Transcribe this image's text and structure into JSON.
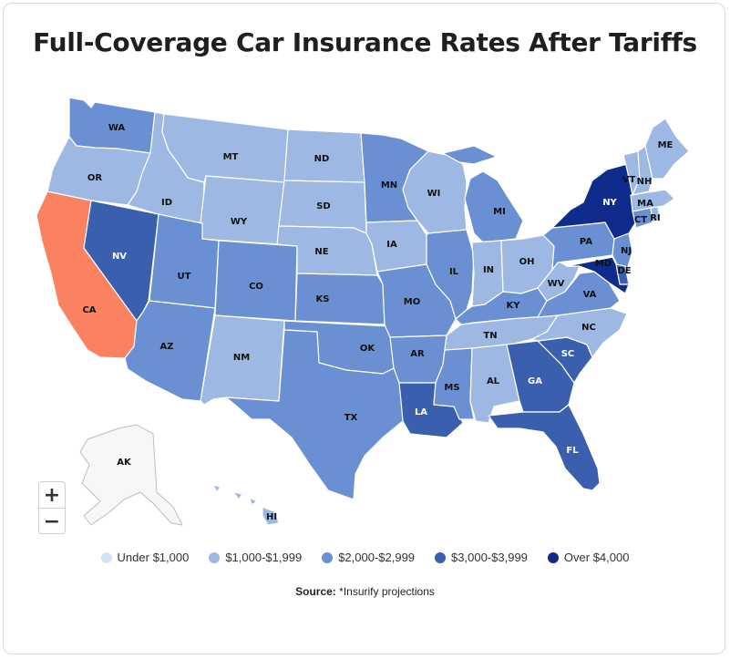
{
  "title": "Full-Coverage Car Insurance Rates After Tariffs",
  "colors": {
    "tier0": "#d4e2f7",
    "tier1": "#9db8e3",
    "tier2": "#6a8fd2",
    "tier3": "#3a5fae",
    "tier4": "#0f2c8c",
    "highlight": "#fa8260",
    "alaska": "#f7f7f7"
  },
  "legend": [
    {
      "label": "Under $1,000",
      "color_key": "tier0"
    },
    {
      "label": "$1,000-$1,999",
      "color_key": "tier1"
    },
    {
      "label": "$2,000-$2,999",
      "color_key": "tier2"
    },
    {
      "label": "$3,000-$3,999",
      "color_key": "tier3"
    },
    {
      "label": "Over $4,000",
      "color_key": "tier4"
    }
  ],
  "source": {
    "prefix": "Source:",
    "text": "*Insurify projections"
  },
  "zoom": {
    "in": "+",
    "out": "−"
  },
  "state_labels": {
    "WA": "WA",
    "OR": "OR",
    "CA": "CA",
    "ID": "ID",
    "NV": "NV",
    "MT": "MT",
    "WY": "WY",
    "UT": "UT",
    "AZ": "AZ",
    "CO": "CO",
    "NM": "NM",
    "ND": "ND",
    "SD": "SD",
    "NE": "NE",
    "KS": "KS",
    "OK": "OK",
    "TX": "TX",
    "MN": "MN",
    "IA": "IA",
    "MO": "MO",
    "AR": "AR",
    "LA": "LA",
    "WI": "WI",
    "IL": "IL",
    "MI": "MI",
    "IN": "IN",
    "OH": "OH",
    "KY": "KY",
    "TN": "TN",
    "MS": "MS",
    "AL": "AL",
    "GA": "GA",
    "FL": "FL",
    "SC": "SC",
    "NC": "NC",
    "VA": "VA",
    "WV": "WV",
    "PA": "PA",
    "NY": "NY",
    "NJ": "NJ",
    "DE": "DE",
    "MD": "MD",
    "CT": "CT",
    "RI": "RI",
    "MA": "MA",
    "VT": "VT",
    "NH": "NH",
    "ME": "ME",
    "AK": "AK",
    "HI": "HI"
  },
  "state_tiers": {
    "WA": "tier2",
    "OR": "tier1",
    "CA": "highlight",
    "ID": "tier1",
    "NV": "tier3",
    "MT": "tier1",
    "WY": "tier1",
    "UT": "tier2",
    "AZ": "tier2",
    "CO": "tier2",
    "NM": "tier1",
    "ND": "tier1",
    "SD": "tier1",
    "NE": "tier1",
    "KS": "tier2",
    "OK": "tier2",
    "TX": "tier2",
    "MN": "tier2",
    "IA": "tier1",
    "MO": "tier2",
    "AR": "tier2",
    "LA": "tier3",
    "WI": "tier1",
    "IL": "tier2",
    "MI": "tier2",
    "IN": "tier1",
    "OH": "tier1",
    "KY": "tier2",
    "TN": "tier1",
    "MS": "tier2",
    "AL": "tier1",
    "GA": "tier3",
    "FL": "tier3",
    "SC": "tier3",
    "NC": "tier1",
    "VA": "tier2",
    "WV": "tier1",
    "PA": "tier2",
    "NY": "tier4",
    "NJ": "tier2",
    "DE": "tier3",
    "MD": "tier4",
    "CT": "tier2",
    "RI": "tier1",
    "MA": "tier1",
    "VT": "tier1",
    "NH": "tier1",
    "ME": "tier1",
    "AK": "alaska",
    "HI": "tier1"
  }
}
